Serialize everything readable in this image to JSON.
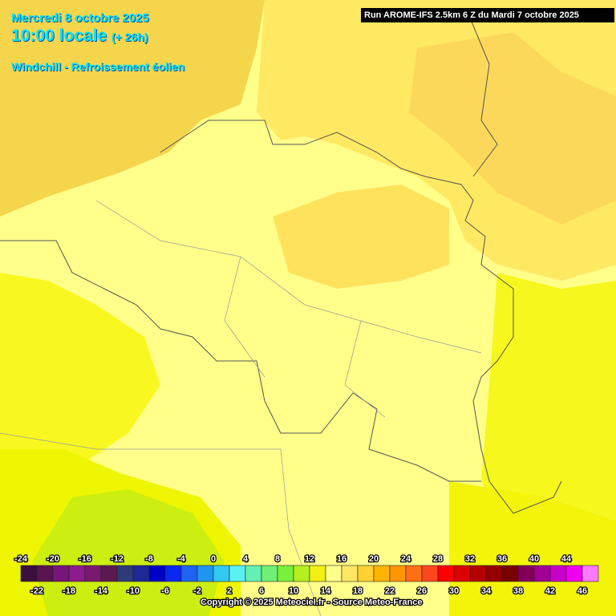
{
  "header": {
    "date": "Mercredi 8 octobre 2025",
    "time": "10:00 locale",
    "lead": "(+ 26h)",
    "parameter": "Windchill - Refroissement éolien",
    "run": "Run AROME-IFS 2.5km 6 Z du Mardi 7 octobre 2025"
  },
  "legend": {
    "labels": [
      -24,
      -22,
      -20,
      -18,
      -16,
      -14,
      -12,
      -10,
      -8,
      -6,
      -4,
      -2,
      0,
      2,
      4,
      6,
      8,
      10,
      12,
      14,
      16,
      18,
      20,
      22,
      24,
      26,
      28,
      30,
      32,
      34,
      36,
      38,
      40,
      42,
      44,
      46
    ],
    "colors": [
      "#3c0f3c",
      "#5a1450",
      "#78147a",
      "#8c1c8c",
      "#781a6e",
      "#5a1a50",
      "#2d3c78",
      "#1e2896",
      "#0000c8",
      "#0a28f0",
      "#1e64f0",
      "#1e96f0",
      "#32c8f0",
      "#5af0f0",
      "#64f0b4",
      "#6ef078",
      "#78f03c",
      "#b4f01e",
      "#f0f014",
      "#ffff8c",
      "#ffe664",
      "#ffd232",
      "#ffb400",
      "#ff9600",
      "#ff6e14",
      "#ff461e",
      "#ff0000",
      "#dc0000",
      "#b40000",
      "#960000",
      "#780000",
      "#82005a",
      "#a00096",
      "#c800c8",
      "#f000f0",
      "#ff78ff"
    ]
  },
  "footer": {
    "copyright": "Copyright © 2025 Meteociel.fr - Source Meteo-France"
  }
}
